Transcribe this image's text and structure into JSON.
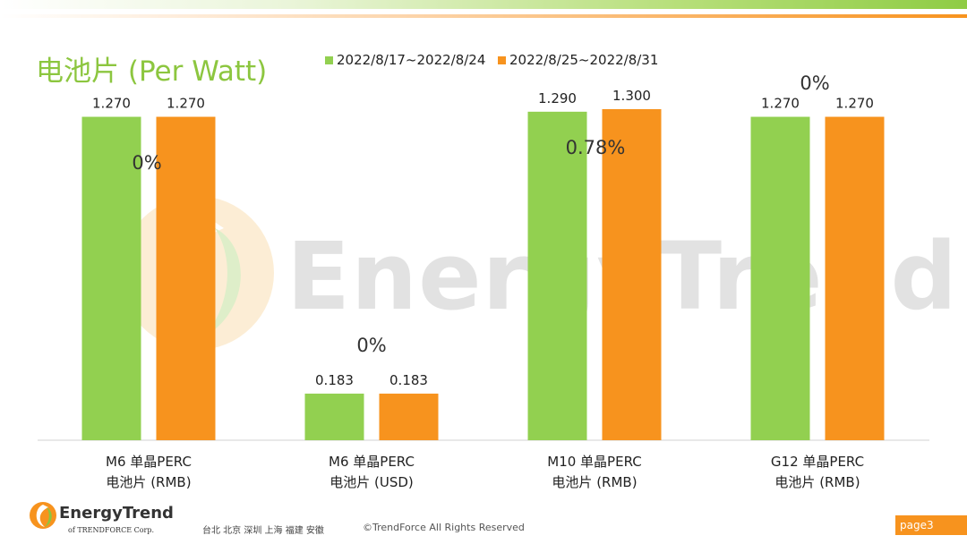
{
  "header": {
    "title": "电池片 (Per Watt)"
  },
  "chart_data": {
    "type": "bar",
    "title": "电池片 (Per Watt)",
    "categories": [
      [
        "M6 单晶PERC",
        "电池片 (RMB)"
      ],
      [
        "M6 单晶PERC",
        "电池片 (USD)"
      ],
      [
        "M10 单晶PERC",
        "电池片 (RMB)"
      ],
      [
        "G12 单晶PERC",
        "电池片 (RMB)"
      ]
    ],
    "series": [
      {
        "name": "2022/8/17~2022/8/24",
        "color": "#92d050",
        "values": [
          1.27,
          0.183,
          1.29,
          1.27
        ],
        "labels": [
          "1.270",
          "0.183",
          "1.290",
          "1.270"
        ]
      },
      {
        "name": "2022/8/25~2022/8/31",
        "color": "#f7931e",
        "values": [
          1.27,
          0.183,
          1.3,
          1.27
        ],
        "labels": [
          "1.270",
          "0.183",
          "1.300",
          "1.270"
        ]
      }
    ],
    "change_labels": [
      "0%",
      "0%",
      "0.78%",
      "0%"
    ],
    "legend_position": "top-center",
    "grid": false
  },
  "watermark": {
    "text": "EnergyTrend"
  },
  "footer": {
    "brand": "EnergyTrend",
    "sub": "of TRENDFORCE Corp.",
    "cities": "台北  北京  深圳  上海  福建  安徽",
    "copyright": "©TrendForce All Rights Reserved",
    "page": "page3"
  },
  "colors": {
    "green": "#92d050",
    "orange": "#f7931e",
    "title": "#8cc63f"
  }
}
